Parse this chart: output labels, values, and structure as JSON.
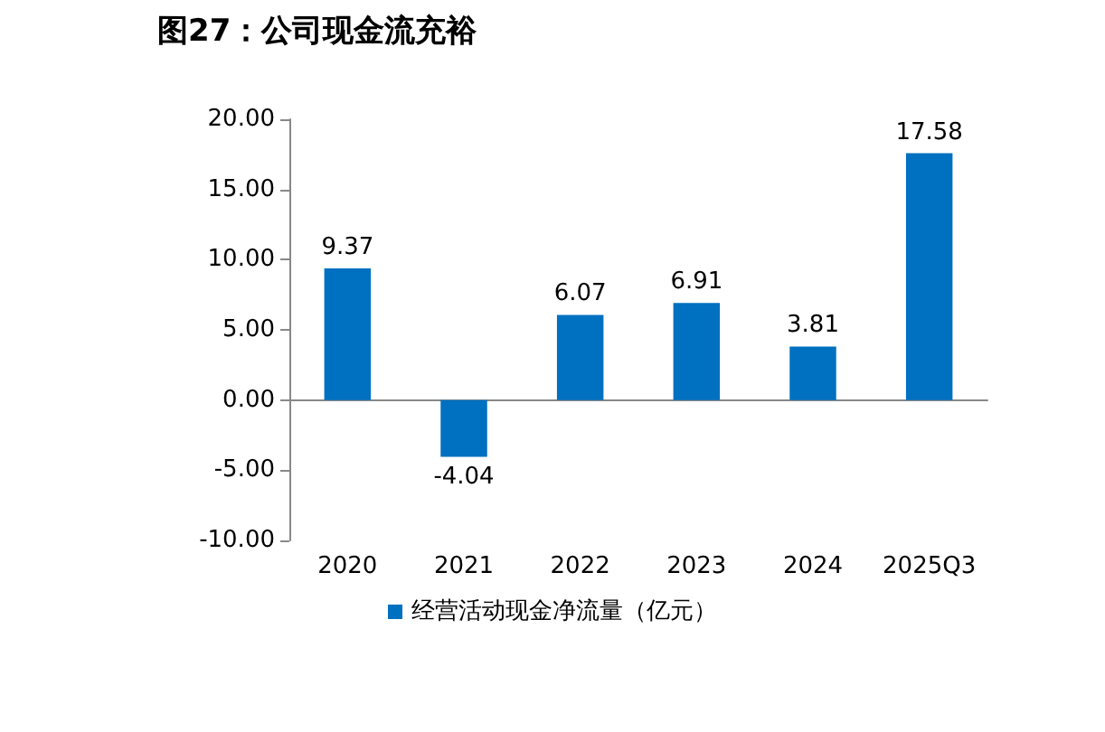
{
  "chart_data": {
    "type": "bar",
    "title": "图27：公司现金流充裕",
    "categories": [
      "2020",
      "2021",
      "2022",
      "2023",
      "2024",
      "2025Q3"
    ],
    "series": [
      {
        "name": "经营活动现金净流量（亿元）",
        "color": "#0070c0",
        "values": [
          9.37,
          -4.04,
          6.07,
          6.91,
          3.81,
          17.58
        ]
      }
    ],
    "ylim": [
      -10,
      20
    ],
    "yticks": [
      {
        "value": -10,
        "label": "-10.00"
      },
      {
        "value": -5,
        "label": "-5.00"
      },
      {
        "value": 0,
        "label": "0.00"
      },
      {
        "value": 5,
        "label": "5.00"
      },
      {
        "value": 10,
        "label": "10.00"
      },
      {
        "value": 15,
        "label": "15.00"
      },
      {
        "value": 20,
        "label": "20.00"
      }
    ],
    "data_labels": true,
    "legend": "bottom"
  }
}
